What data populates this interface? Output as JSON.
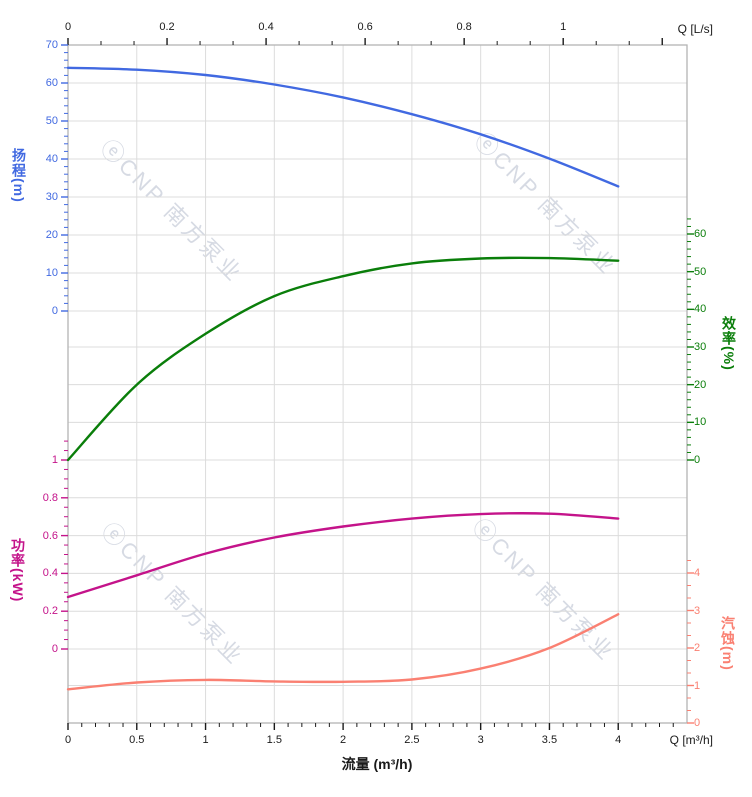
{
  "page": {
    "background": "#ffffff",
    "grid_color": "#dcdcdc",
    "border_color": "#b4b4b4",
    "tick_color": "#1a1a1a"
  },
  "watermark": {
    "logo": "ⓔ",
    "text": "CNP 南方泵业",
    "color": "#d6dae3"
  },
  "axes": {
    "top": {
      "unit_label": "Q [L/s]",
      "color": "#1a1a1a",
      "tick_labels": [
        "0",
        "0.2",
        "0.4",
        "0.6",
        "0.8",
        "1"
      ]
    },
    "bottom": {
      "unit_label": "Q [m³/h]",
      "title": "流量 (m³/h)",
      "color": "#1a1a1a",
      "tick_labels": [
        "0",
        "0.5",
        "1",
        "1.5",
        "2",
        "2.5",
        "3",
        "3.5",
        "4"
      ]
    },
    "head": {
      "title": "扬程(m)",
      "color": "#4169E1",
      "tick_labels": [
        "70",
        "60",
        "50",
        "40",
        "30",
        "20",
        "10",
        "0"
      ]
    },
    "efficiency": {
      "title": "效率(%)",
      "color": "#0A7E0A",
      "tick_labels": [
        "60",
        "50",
        "40",
        "30",
        "20",
        "10",
        "0"
      ]
    },
    "power": {
      "title": "功率(kW)",
      "color": "#C4138A",
      "tick_labels": [
        "1",
        "0.8",
        "0.6",
        "0.4",
        "0.2",
        "0"
      ]
    },
    "npsh": {
      "title": "汽蚀(m)",
      "color": "#FA8072",
      "tick_labels": [
        "4",
        "3",
        "2",
        "1",
        "0"
      ]
    }
  },
  "chart_data": {
    "type": "line",
    "title": "",
    "xlabel": "流量 (m³/h)",
    "x_unit_bottom": "Q [m³/h]",
    "x_unit_top": "Q [L/s]",
    "x": [
      0,
      0.5,
      1,
      1.5,
      2,
      2.5,
      3,
      3.5,
      4
    ],
    "xlim_bottom_m3h": [
      0,
      4.5
    ],
    "xlim_top_Ls": [
      0,
      1.25
    ],
    "x_ticks_top_Ls": [
      0,
      0.2,
      0.4,
      0.6,
      0.8,
      1
    ],
    "grid": true,
    "legend": false,
    "series": [
      {
        "name": "扬程",
        "unit": "m",
        "axis": "head",
        "axis_side": "left",
        "color": "#4169E1",
        "ylim": [
          0,
          70
        ],
        "yticks": [
          0,
          10,
          20,
          30,
          40,
          50,
          60,
          70
        ],
        "values": [
          64,
          63.5,
          62.1,
          59.6,
          56.2,
          51.8,
          46.5,
          40.1,
          32.8
        ]
      },
      {
        "name": "效率",
        "unit": "%",
        "axis": "efficiency",
        "axis_side": "right",
        "color": "#0A7E0A",
        "ylim": [
          0,
          60
        ],
        "yticks": [
          0,
          10,
          20,
          30,
          40,
          50,
          60
        ],
        "values": [
          0,
          20,
          33.5,
          43.5,
          48.8,
          52.2,
          53.5,
          53.6,
          52.9
        ]
      },
      {
        "name": "功率",
        "unit": "kW",
        "axis": "power",
        "axis_side": "left",
        "color": "#C4138A",
        "ylim": [
          0,
          1
        ],
        "yticks": [
          0,
          0.2,
          0.4,
          0.6,
          0.8,
          1
        ],
        "values": [
          0.275,
          0.39,
          0.505,
          0.59,
          0.648,
          0.69,
          0.714,
          0.716,
          0.69
        ]
      },
      {
        "name": "汽蚀",
        "unit": "m",
        "axis": "npsh",
        "axis_side": "right",
        "color": "#FA8072",
        "ylim": [
          0,
          4
        ],
        "yticks": [
          0,
          1,
          2,
          3,
          4
        ],
        "values": [
          0.9,
          1.08,
          1.15,
          1.11,
          1.1,
          1.16,
          1.45,
          2.0,
          2.9
        ]
      }
    ]
  }
}
